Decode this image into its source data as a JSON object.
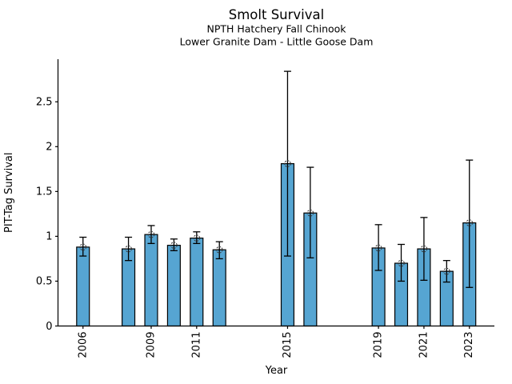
{
  "chart_data": {
    "type": "bar",
    "title": "Smolt Survival",
    "subtitle": [
      "NPTH Hatchery Fall Chinook",
      "Lower Granite Dam - Little Goose Dam"
    ],
    "xlabel": "Year",
    "ylabel": "PIT-Tag Survival",
    "categories": [
      2006,
      2008,
      2009,
      2010,
      2011,
      2012,
      2015,
      2016,
      2019,
      2020,
      2021,
      2022,
      2023
    ],
    "values": [
      0.88,
      0.86,
      1.02,
      0.9,
      0.98,
      0.85,
      1.81,
      1.26,
      0.87,
      0.7,
      0.86,
      0.61,
      1.15
    ],
    "ci_lower": [
      0.78,
      0.73,
      0.92,
      0.84,
      0.92,
      0.75,
      0.78,
      0.76,
      0.62,
      0.5,
      0.51,
      0.49,
      0.43
    ],
    "ci_upper": [
      0.99,
      0.99,
      1.12,
      0.97,
      1.05,
      0.94,
      2.84,
      1.77,
      1.13,
      0.91,
      1.21,
      0.73,
      1.85
    ],
    "xticks": [
      2006,
      2009,
      2011,
      2015,
      2019,
      2021,
      2023
    ],
    "yticks": [
      0,
      0.5,
      1,
      1.5,
      2,
      2.5
    ],
    "xlim": [
      2004.9,
      2024.1
    ],
    "ylim": [
      0,
      2.975
    ],
    "bar_width": 0.56,
    "grid": false,
    "legend": "none",
    "x_tick_label_rotation": 90,
    "colors": {
      "bar_fill": "#56A5D2",
      "bar_edge": "#000000",
      "error_bar": "#000000",
      "marker_ring": "#3a3a3a",
      "axis": "#000000",
      "text": "#000000",
      "background": "#ffffff"
    }
  }
}
